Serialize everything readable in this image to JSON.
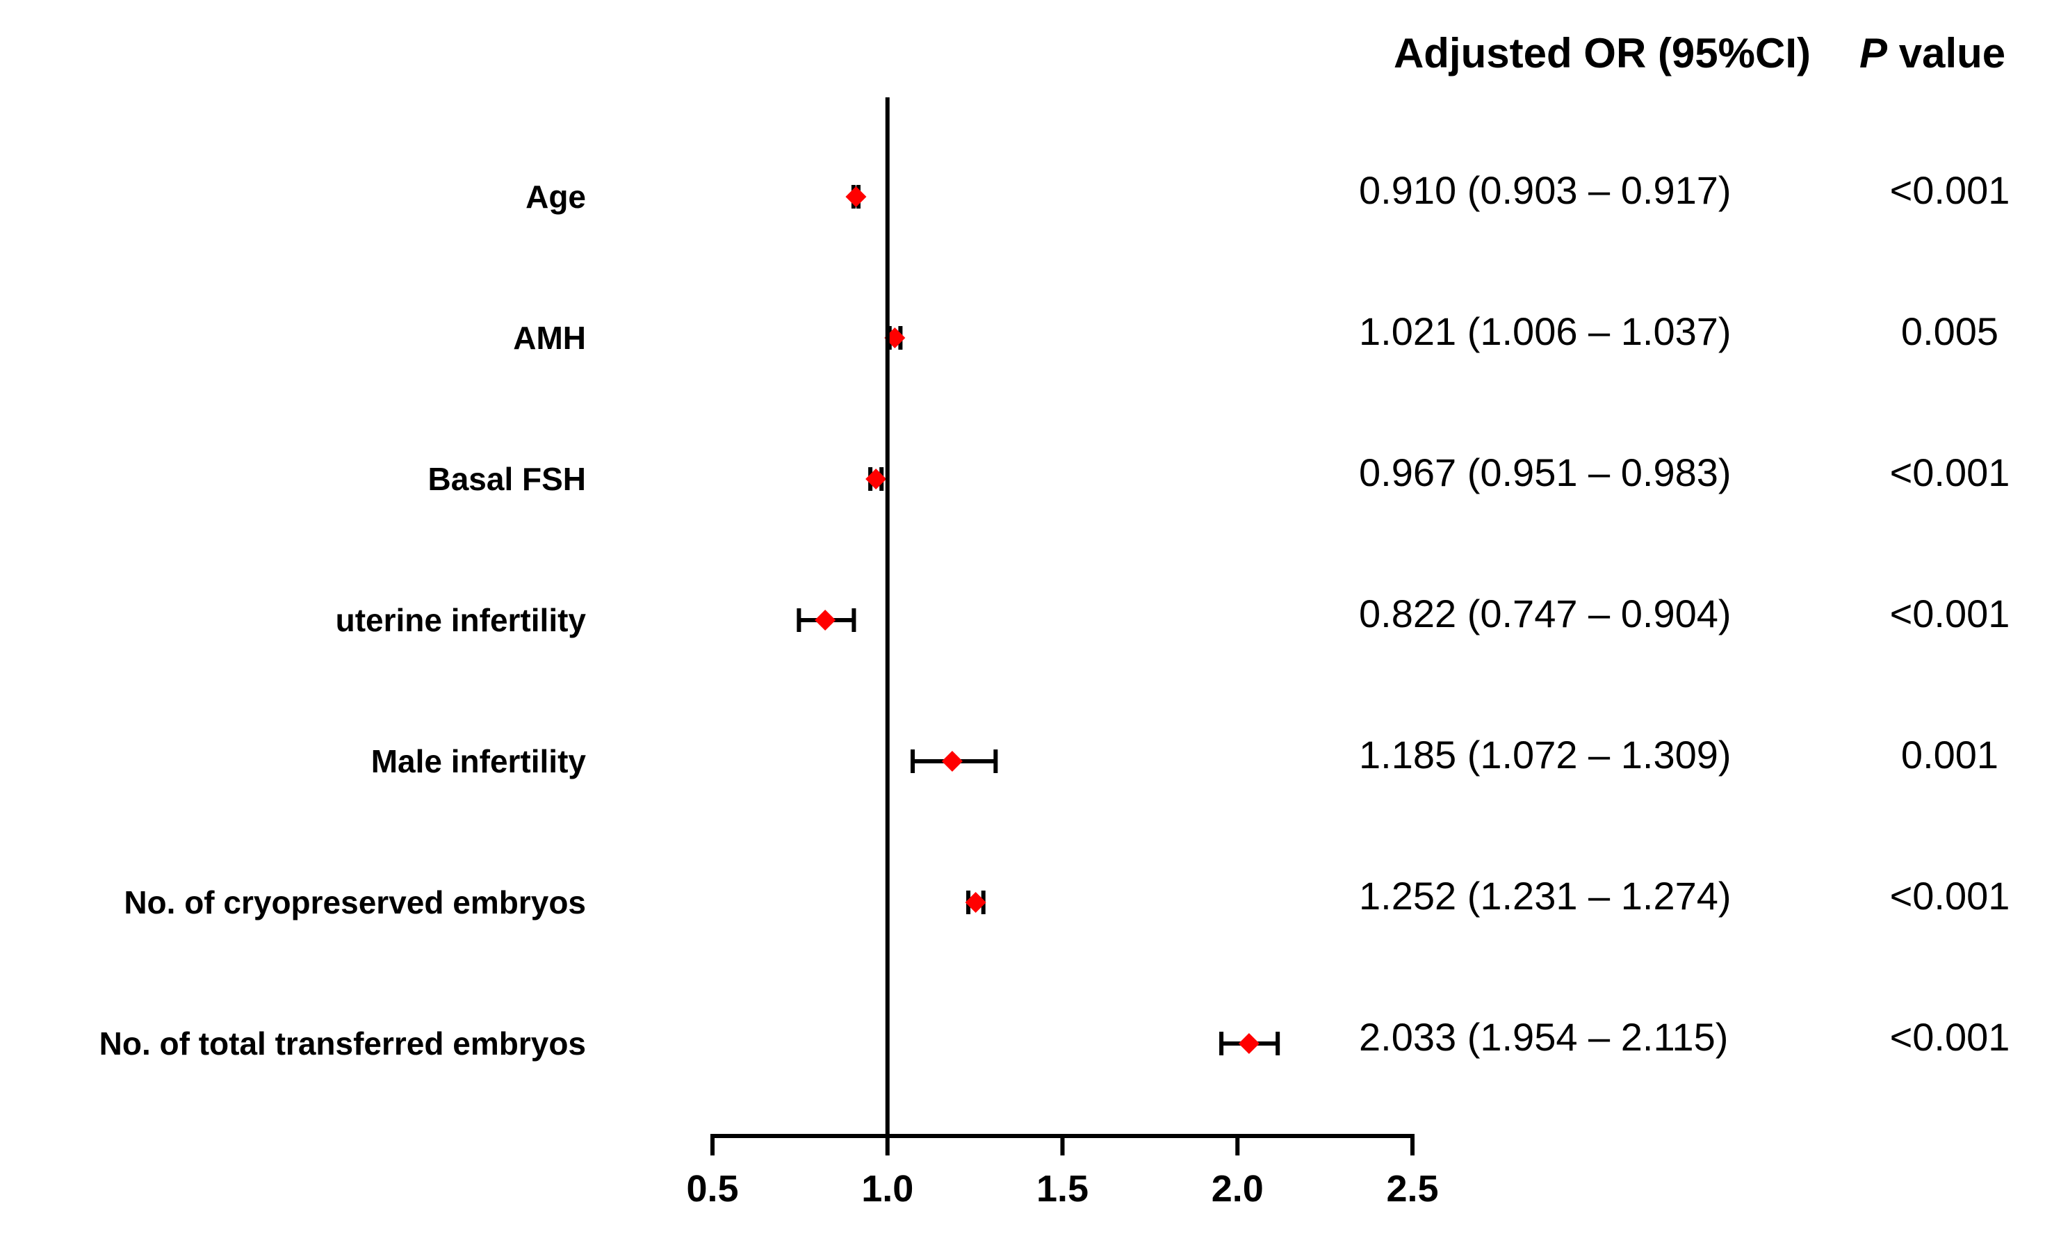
{
  "chart_data": {
    "type": "forest",
    "title": "",
    "xlabel": "",
    "ylabel": "",
    "xlim": [
      0.5,
      2.5
    ],
    "x_ticks": [
      0.5,
      1.0,
      1.5,
      2.0,
      2.5
    ],
    "x_tick_labels": [
      "0.5",
      "1.0",
      "1.5",
      "2.0",
      "2.5"
    ],
    "reference_line": 1.0,
    "header": {
      "or_title": "Adjusted OR (95%CI)",
      "p_prefix": "P",
      "p_suffix": " value"
    },
    "rows": [
      {
        "label": "Age",
        "or": 0.91,
        "lower": 0.903,
        "upper": 0.917,
        "or_text": "0.910 (0.903 – 0.917)",
        "p_text": "<0.001"
      },
      {
        "label": "AMH",
        "or": 1.021,
        "lower": 1.006,
        "upper": 1.037,
        "or_text": "1.021 (1.006 – 1.037)",
        "p_text": "0.005"
      },
      {
        "label": "Basal FSH",
        "or": 0.967,
        "lower": 0.951,
        "upper": 0.983,
        "or_text": "0.967 (0.951 – 0.983)",
        "p_text": "<0.001"
      },
      {
        "label": "uterine infertility",
        "or": 0.822,
        "lower": 0.747,
        "upper": 0.904,
        "or_text": "0.822 (0.747 – 0.904)",
        "p_text": "<0.001"
      },
      {
        "label": "Male infertility",
        "or": 1.185,
        "lower": 1.072,
        "upper": 1.309,
        "or_text": "1.185 (1.072 – 1.309)",
        "p_text": "0.001"
      },
      {
        "label": "No. of cryopreserved embryos",
        "or": 1.252,
        "lower": 1.231,
        "upper": 1.274,
        "or_text": "1.252 (1.231 – 1.274)",
        "p_text": "<0.001"
      },
      {
        "label": "No. of total transferred embryos",
        "or": 2.033,
        "lower": 1.954,
        "upper": 2.115,
        "or_text": "2.033 (1.954 – 2.115)",
        "p_text": "<0.001"
      }
    ],
    "colors": {
      "marker": "#ff0000",
      "line": "#000000",
      "text": "#000000"
    }
  }
}
